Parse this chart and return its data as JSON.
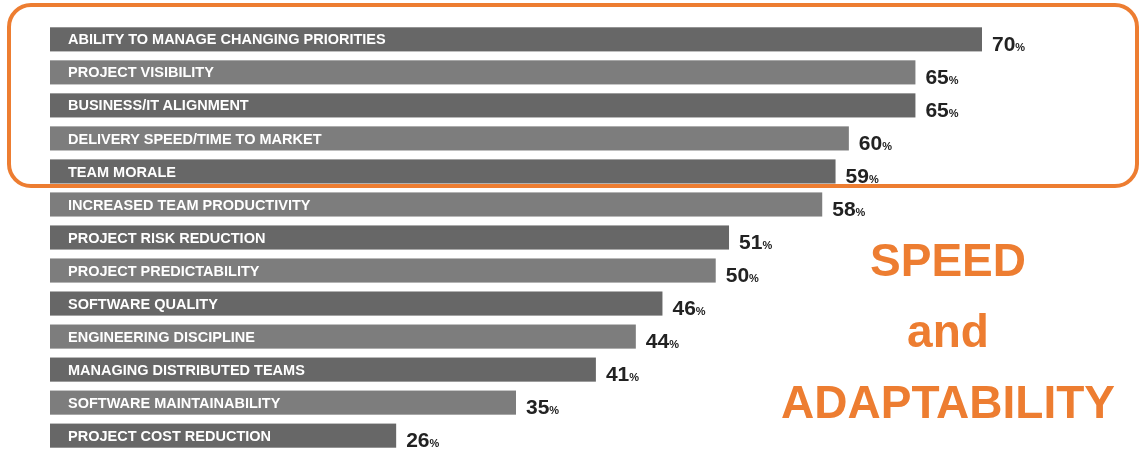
{
  "chart_data": {
    "type": "bar",
    "orientation": "horizontal",
    "data_labels": true,
    "categories": [
      "ABILITY TO MANAGE CHANGING PRIORITIES",
      "PROJECT VISIBILITY",
      "BUSINESS/IT ALIGNMENT",
      "DELIVERY SPEED/TIME TO MARKET",
      "TEAM MORALE",
      "INCREASED TEAM PRODUCTIVITY",
      "PROJECT RISK REDUCTION",
      "PROJECT PREDICTABILITY",
      "SOFTWARE QUALITY",
      "ENGINEERING DISCIPLINE",
      "MANAGING DISTRIBUTED TEAMS",
      "SOFTWARE MAINTAINABILITY",
      "PROJECT COST REDUCTION"
    ],
    "values": [
      70,
      65,
      65,
      60,
      59,
      58,
      51,
      50,
      46,
      44,
      41,
      35,
      26
    ],
    "value_labels": [
      "70%",
      "65%",
      "65%",
      "60%",
      "59%",
      "58%",
      "51%",
      "50%",
      "46%",
      "44%",
      "41%",
      "35%",
      "26%"
    ],
    "colors": [
      "#676767",
      "#7d7d7d",
      "#676767",
      "#7d7d7d",
      "#676767",
      "#7d7d7d",
      "#676767",
      "#7d7d7d",
      "#676767",
      "#7d7d7d",
      "#676767",
      "#7d7d7d",
      "#676767"
    ],
    "annotations": [
      "SPEED and ADAPTABILITY"
    ]
  }
}
